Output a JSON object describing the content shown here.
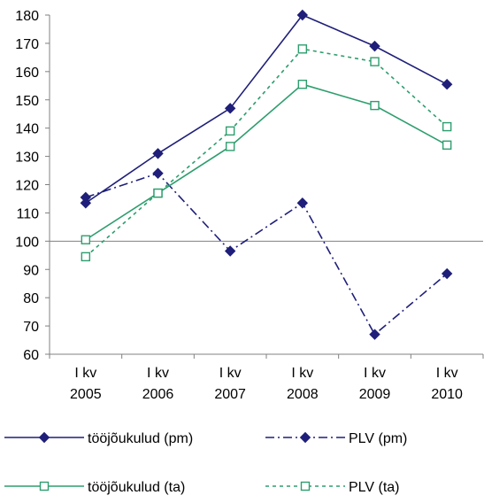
{
  "chart_data": {
    "type": "line",
    "categories": [
      [
        "I kv",
        "2005"
      ],
      [
        "I kv",
        "2006"
      ],
      [
        "I kv",
        "2007"
      ],
      [
        "I kv",
        "2008"
      ],
      [
        "I kv",
        "2009"
      ],
      [
        "I kv",
        "2010"
      ]
    ],
    "ylim": [
      60,
      180
    ],
    "yticks": [
      60,
      70,
      80,
      90,
      100,
      110,
      120,
      130,
      140,
      150,
      160,
      170,
      180
    ],
    "reference_line": 100,
    "grid": false,
    "legend_position": "bottom",
    "series": [
      {
        "name": "tööjõukulud (pm)",
        "values": [
          113.5,
          131,
          147,
          180,
          169,
          155.5
        ],
        "color": "#1f1f7a",
        "dash": "solid",
        "marker": "diamond-filled"
      },
      {
        "name": "PLV (pm)",
        "values": [
          115.5,
          124,
          96.5,
          113.5,
          67,
          88.5
        ],
        "color": "#1f1f7a",
        "dash": "dash-dot",
        "marker": "diamond-filled"
      },
      {
        "name": "tööjõukulud (ta)",
        "values": [
          100.5,
          117,
          133.5,
          155.5,
          148,
          134
        ],
        "color": "#2e9e6e",
        "dash": "solid",
        "marker": "square-open"
      },
      {
        "name": "PLV (ta)",
        "values": [
          94.5,
          117,
          139,
          168,
          163.5,
          140.5
        ],
        "color": "#2e9e6e",
        "dash": "dotted",
        "marker": "square-open"
      }
    ]
  }
}
